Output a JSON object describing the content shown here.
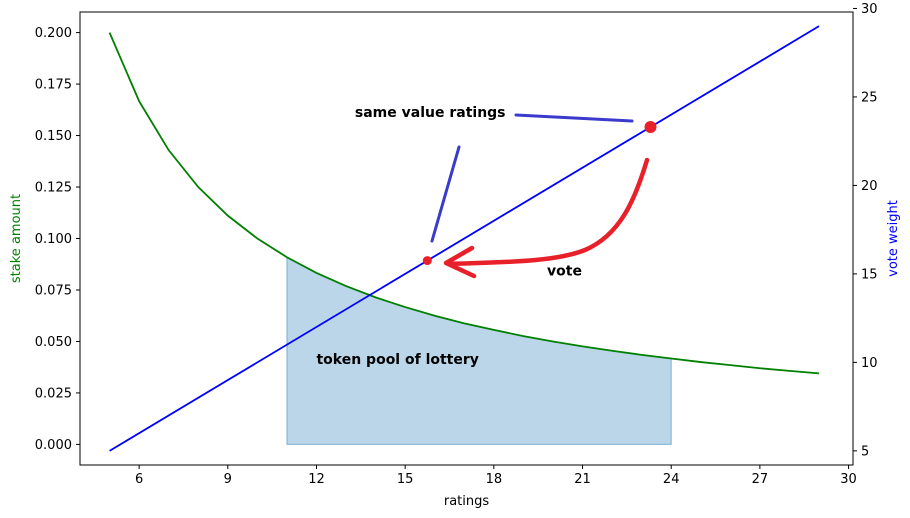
{
  "chart_data": {
    "type": "line",
    "xlabel": "ratings",
    "ylabel_left": "stake amount",
    "ylabel_right": "vote weight",
    "xlim": [
      4.0,
      30.15
    ],
    "ylim_left": [
      -0.01,
      0.21
    ],
    "ylim_right": [
      4.2,
      29.8
    ],
    "x_ticks": [
      6,
      9,
      12,
      15,
      18,
      21,
      24,
      27,
      30
    ],
    "y_left_ticks": [
      "0.000",
      "0.025",
      "0.050",
      "0.075",
      "0.100",
      "0.125",
      "0.150",
      "0.175",
      "0.200"
    ],
    "y_right_ticks": [
      5,
      10,
      15,
      20,
      25,
      30
    ],
    "grid": false,
    "series": [
      {
        "color": "#008000",
        "axis": "left",
        "x": [
          5,
          6,
          7,
          8,
          9,
          10,
          11,
          12,
          13,
          14,
          15,
          16,
          17,
          18,
          19,
          20,
          21,
          22,
          23,
          24,
          25,
          26,
          27,
          28,
          29
        ],
        "values": [
          0.2,
          0.1667,
          0.1429,
          0.125,
          0.1111,
          0.1,
          0.0909,
          0.0833,
          0.0769,
          0.0714,
          0.0667,
          0.0625,
          0.0588,
          0.0556,
          0.0526,
          0.05,
          0.0476,
          0.0455,
          0.0435,
          0.0417,
          0.04,
          0.0385,
          0.037,
          0.0357,
          0.0345
        ]
      },
      {
        "color": "#0000ff",
        "axis": "right",
        "x": [
          5,
          29
        ],
        "values": [
          5,
          29
        ]
      }
    ],
    "fill_region": {
      "label": "token pool of lottery",
      "x_from": 11,
      "x_to": 24,
      "color": "#1f77b4",
      "opacity": 0.3
    },
    "annotations": [
      {
        "text": "same value ratings",
        "x": 13.3,
        "y_left": 0.159
      },
      {
        "text": "vote",
        "x": 19.8,
        "y_left": 0.082
      },
      {
        "text": "token pool of lottery",
        "x": 12.0,
        "y_left": 0.039
      }
    ],
    "markers": [
      {
        "x": 15.75,
        "y_right": 15.75,
        "color": "#e8202a"
      },
      {
        "x": 23.3,
        "y_right": 23.3,
        "color": "#e8202a"
      }
    ]
  },
  "colors": {
    "green": "#008000",
    "blue": "#0000ff",
    "red": "#e8202a",
    "marker_blue": "#3a3acc"
  }
}
